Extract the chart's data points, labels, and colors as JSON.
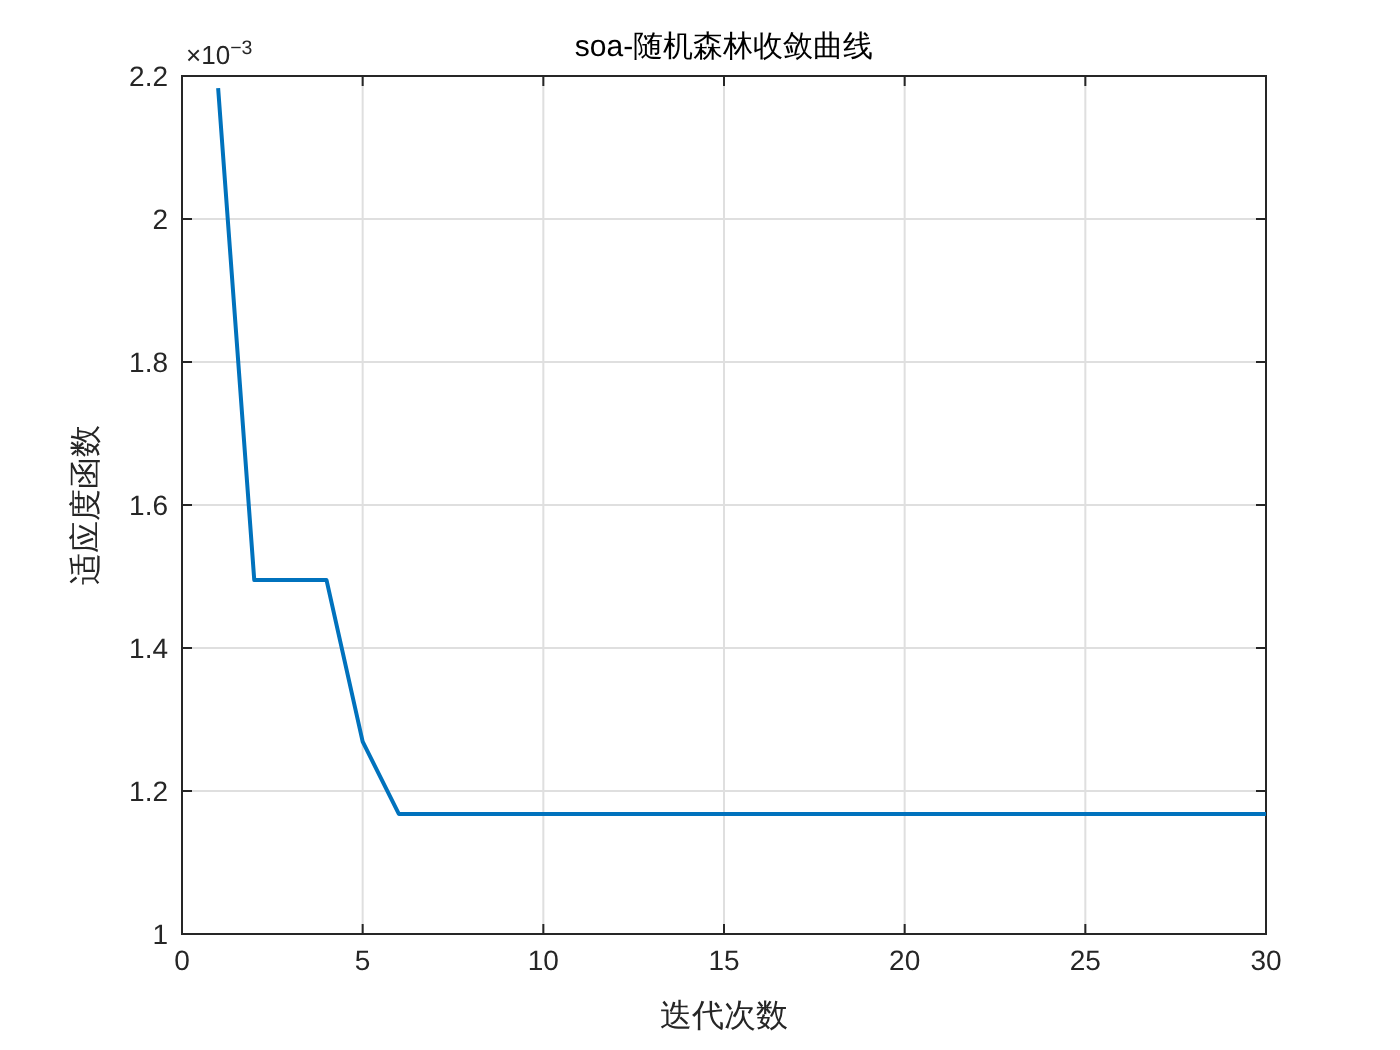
{
  "chart_data": {
    "type": "line",
    "title": "soa-随机森林收敛曲线",
    "xlabel": "迭代次数",
    "ylabel": "适应度函数",
    "x": [
      1,
      2,
      3,
      4,
      5,
      6,
      7,
      8,
      9,
      10,
      11,
      12,
      13,
      14,
      15,
      16,
      17,
      18,
      19,
      20,
      21,
      22,
      23,
      24,
      25,
      26,
      27,
      28,
      29,
      30
    ],
    "series": [
      {
        "color": "#0072bd",
        "values": [
          2.183,
          1.495,
          1.495,
          1.495,
          1.269,
          1.168,
          1.168,
          1.168,
          1.168,
          1.168,
          1.168,
          1.168,
          1.168,
          1.168,
          1.168,
          1.168,
          1.168,
          1.168,
          1.168,
          1.168,
          1.168,
          1.168,
          1.168,
          1.168,
          1.168,
          1.168,
          1.168,
          1.168,
          1.168,
          1.168
        ]
      }
    ],
    "xlim": [
      0,
      30
    ],
    "xticks": [
      0,
      5,
      10,
      15,
      20,
      25,
      30
    ],
    "ylim": [
      1,
      2.2
    ],
    "yticks": [
      1,
      1.2,
      1.4,
      1.6,
      1.8,
      2,
      2.2
    ],
    "annotations": [
      "×10$^{−3}$"
    ],
    "grid": true,
    "marker": "none",
    "line_style": "solid"
  }
}
